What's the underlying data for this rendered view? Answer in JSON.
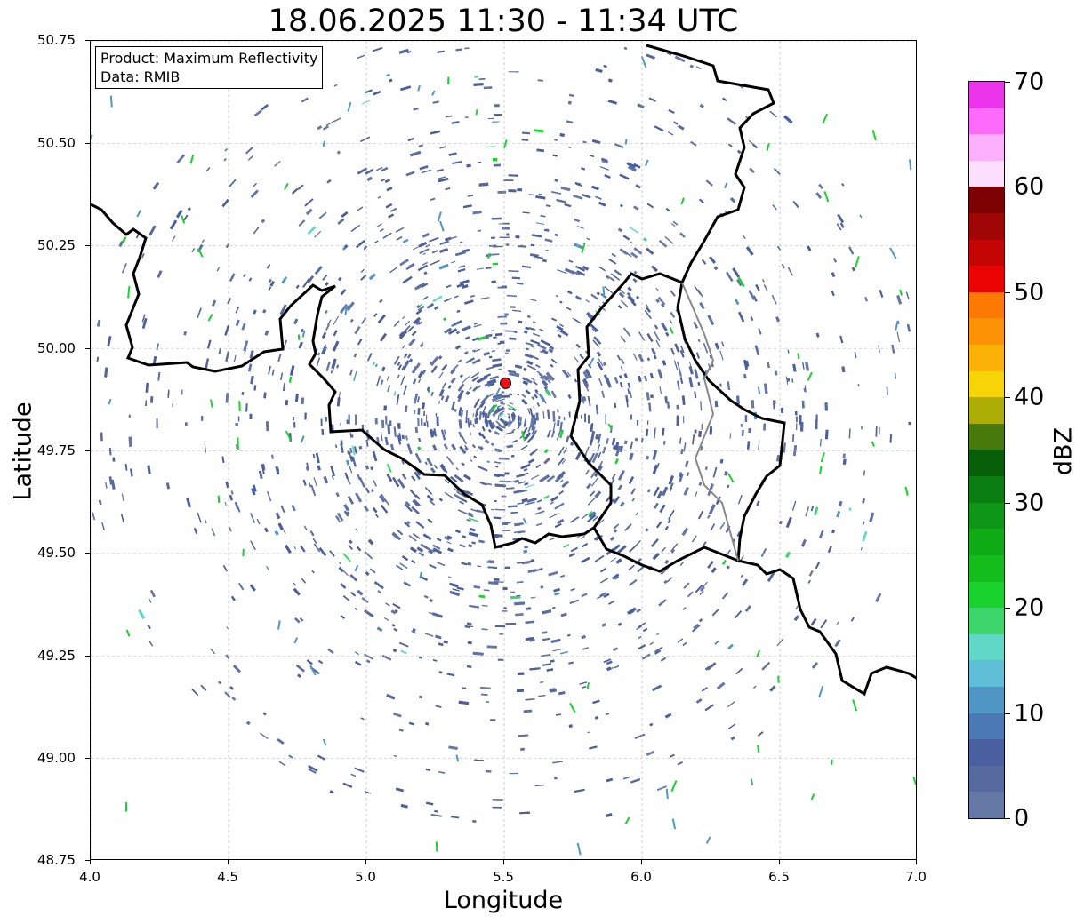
{
  "map": {
    "title": "18.06.2025 11:30 - 11:34 UTC",
    "xlabel": "Longitude",
    "ylabel": "Latitude",
    "xlim": [
      4.0,
      7.0
    ],
    "ylim": [
      48.75,
      50.75
    ],
    "x_ticks": [
      "4.0",
      "4.5",
      "5.0",
      "5.5",
      "6.0",
      "6.5",
      "7.0"
    ],
    "y_ticks": [
      "48.75",
      "49.00",
      "49.25",
      "49.50",
      "49.75",
      "50.00",
      "50.25",
      "50.50",
      "50.75"
    ],
    "grid": true,
    "radar_site": {
      "lon": 5.505,
      "lat": 49.915,
      "color": "#e8141b"
    },
    "info": {
      "product": "Product: Maximum Reflectivity",
      "source": "Data: RMIB"
    }
  },
  "colorbar": {
    "label": "dBZ",
    "ticks": [
      "0",
      "10",
      "20",
      "30",
      "40",
      "50",
      "60",
      "70"
    ],
    "colors": [
      "#6678a6",
      "#576aa0",
      "#4a5fa0",
      "#4a79b4",
      "#4f96c4",
      "#5fbfd8",
      "#5fd8c8",
      "#3dd66c",
      "#19d22d",
      "#13be1c",
      "#10ac16",
      "#0e9616",
      "#0b7e12",
      "#075f08",
      "#477a0b",
      "#acae06",
      "#f7d405",
      "#fbb106",
      "#fc9204",
      "#fc7903",
      "#ea0404",
      "#c50404",
      "#a00606",
      "#7c0101",
      "#fde0fe",
      "#fdb0fd",
      "#fb6afb",
      "#ec35eb"
    ]
  }
}
